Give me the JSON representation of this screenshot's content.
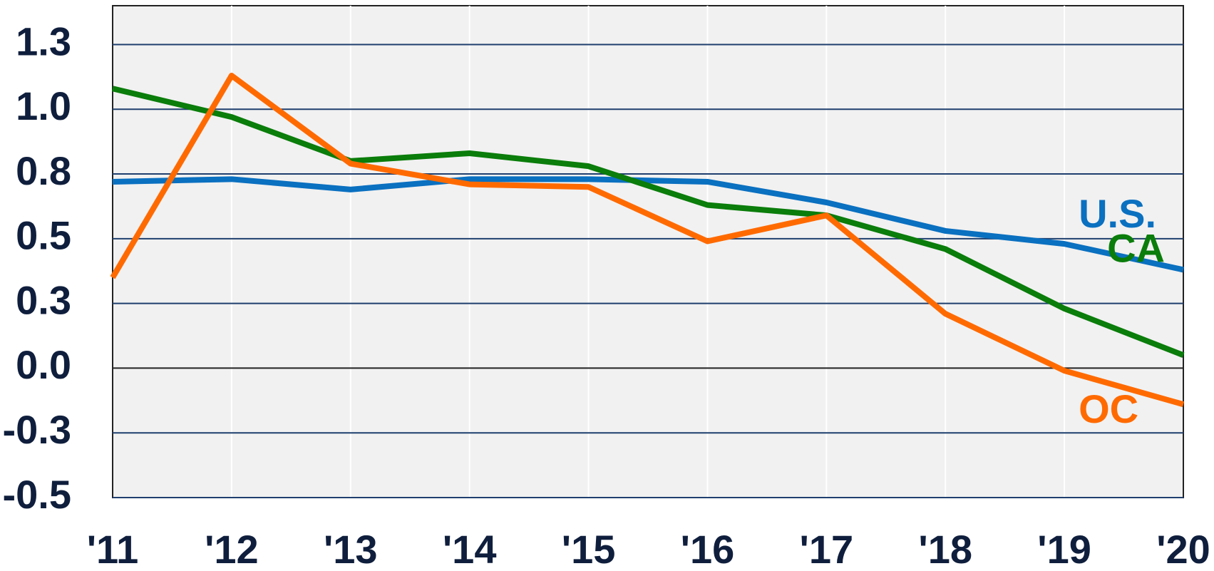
{
  "chart_data": {
    "type": "line",
    "categories": [
      "'11",
      "'12",
      "'13",
      "'14",
      "'15",
      "'16",
      "'17",
      "'18",
      "'19",
      "'20"
    ],
    "series": [
      {
        "name": "U.S.",
        "color": "#0a70c0",
        "values": [
          0.72,
          0.73,
          0.69,
          0.73,
          0.73,
          0.72,
          0.64,
          0.53,
          0.48,
          0.38
        ]
      },
      {
        "name": "CA",
        "color": "#0a7d0a",
        "values": [
          1.08,
          0.97,
          0.8,
          0.83,
          0.78,
          0.63,
          0.59,
          0.46,
          0.23,
          0.05
        ]
      },
      {
        "name": "OC",
        "color": "#ff6a00",
        "values": [
          0.35,
          1.13,
          0.79,
          0.71,
          0.7,
          0.49,
          0.59,
          0.21,
          -0.01,
          -0.14
        ]
      }
    ],
    "ylim": [
      -0.5,
      1.4
    ],
    "yticks": [
      {
        "value": -0.5,
        "label": "-0.5"
      },
      {
        "value": -0.25,
        "label": "-0.3"
      },
      {
        "value": 0,
        "label": "0.0"
      },
      {
        "value": 0.25,
        "label": "0.3"
      },
      {
        "value": 0.5,
        "label": "0.5"
      },
      {
        "value": 0.75,
        "label": "0.8"
      },
      {
        "value": 1,
        "label": "1.0"
      },
      {
        "value": 1.25,
        "label": "1.3"
      }
    ],
    "grid": true
  }
}
